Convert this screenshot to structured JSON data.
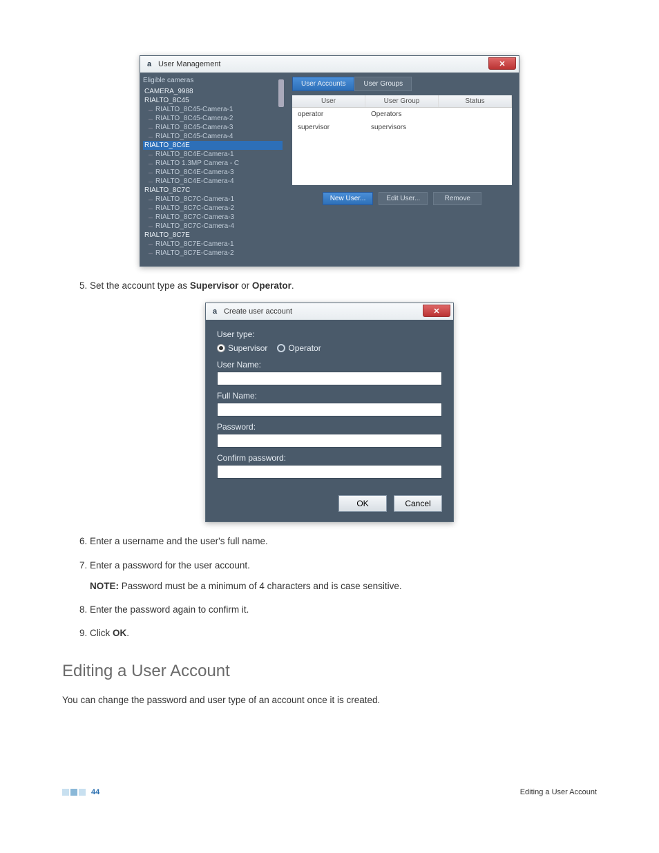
{
  "colors": {
    "window_bg": "#4e5e6e",
    "titlebar_gradient": [
      "#f7f9fb",
      "#e8edf0"
    ],
    "close_btn": [
      "#d66",
      "#b33"
    ],
    "tab_active": [
      "#4a8fd8",
      "#2d6fb8"
    ],
    "primary_btn": [
      "#4a8fd8",
      "#2d6fb8"
    ],
    "selected_row": "#2d6fb8",
    "link": "#2a6fb0"
  },
  "window1": {
    "title": "User Management",
    "close_glyph": "✕",
    "left": {
      "label": "Eligible cameras",
      "tree": [
        {
          "label": "CAMERA_9988",
          "type": "root"
        },
        {
          "label": "RIALTO_8C45",
          "type": "root"
        },
        {
          "label": "RIALTO_8C45-Camera-1",
          "type": "child"
        },
        {
          "label": "RIALTO_8C45-Camera-2",
          "type": "child"
        },
        {
          "label": "RIALTO_8C45-Camera-3",
          "type": "child"
        },
        {
          "label": "RIALTO_8C45-Camera-4",
          "type": "child"
        },
        {
          "label": "RIALTO_8C4E",
          "type": "root",
          "selected": true
        },
        {
          "label": "RIALTO_8C4E-Camera-1",
          "type": "child"
        },
        {
          "label": "RIALTO 1.3MP Camera - C",
          "type": "child"
        },
        {
          "label": "RIALTO_8C4E-Camera-3",
          "type": "child"
        },
        {
          "label": "RIALTO_8C4E-Camera-4",
          "type": "child"
        },
        {
          "label": "RIALTO_8C7C",
          "type": "root"
        },
        {
          "label": "RIALTO_8C7C-Camera-1",
          "type": "child"
        },
        {
          "label": "RIALTO_8C7C-Camera-2",
          "type": "child"
        },
        {
          "label": "RIALTO_8C7C-Camera-3",
          "type": "child"
        },
        {
          "label": "RIALTO_8C7C-Camera-4",
          "type": "child"
        },
        {
          "label": "RIALTO_8C7E",
          "type": "root"
        },
        {
          "label": "RIALTO_8C7E-Camera-1",
          "type": "child"
        },
        {
          "label": "RIALTO_8C7E-Camera-2",
          "type": "child"
        }
      ]
    },
    "right": {
      "tabs": [
        {
          "label": "User Accounts",
          "active": true
        },
        {
          "label": "User Groups",
          "active": false
        }
      ],
      "columns": [
        "User",
        "User Group",
        "Status"
      ],
      "rows": [
        {
          "user": "operator",
          "group": "Operators",
          "status": ""
        },
        {
          "user": "supervisor",
          "group": "supervisors",
          "status": ""
        }
      ],
      "buttons": {
        "new": "New User...",
        "edit": "Edit User...",
        "remove": "Remove"
      }
    }
  },
  "steps": {
    "start": 5,
    "s5_pre": "Set the account type as ",
    "s5_b1": "Supervisor",
    "s5_mid": " or ",
    "s5_b2": "Operator",
    "s5_post": ".",
    "s6": "Enter a username and the user's full name.",
    "s7": "Enter a password for the user account.",
    "note_label": "NOTE:",
    "note_text": " Password must be a minimum of 4 characters and is case sensitive.",
    "s8": "Enter the password again to confirm it.",
    "s9_pre": "Click ",
    "s9_b": "OK",
    "s9_post": "."
  },
  "dialog": {
    "title": "Create user account",
    "close_glyph": "✕",
    "usertype_label": "User type:",
    "radio_supervisor": "Supervisor",
    "radio_operator": "Operator",
    "username_label": "User Name:",
    "fullname_label": "Full Name:",
    "password_label": "Password:",
    "confirm_label": "Confirm password:",
    "ok": "OK",
    "cancel": "Cancel"
  },
  "section": {
    "heading": "Editing a User Account",
    "para": "You can change the password and user type of an account once it is created."
  },
  "footer": {
    "page": "44",
    "right": "Editing a User Account",
    "block_colors": [
      "#c8e0f0",
      "#8ab8d8",
      "#c8e0f0"
    ]
  }
}
